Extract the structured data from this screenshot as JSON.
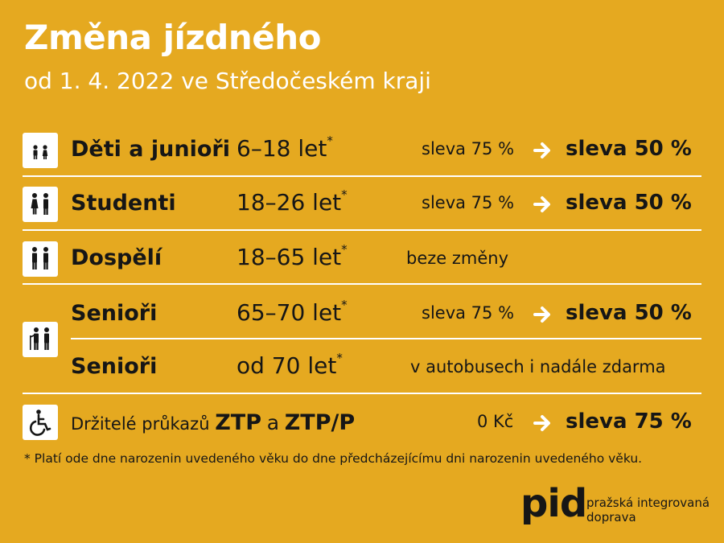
{
  "header": {
    "title": "Změna jízdného",
    "subtitle": "od 1. 4. 2022 ve Středočeském kraji"
  },
  "rows": [
    {
      "icon": "children-icon",
      "name": "Děti a junioři",
      "age": "6–18 let",
      "star": "*",
      "old": "sleva 75 %",
      "new": "sleva 50 %"
    },
    {
      "icon": "students-icon",
      "name": "Studenti",
      "age": "18–26 let",
      "star": "*",
      "old": "sleva 75 %",
      "new": "sleva 50 %"
    },
    {
      "icon": "adults-icon",
      "name": "Dospělí",
      "age": "18–65 let",
      "star": "*",
      "note": "beze změny"
    },
    {
      "icon": "seniors-icon",
      "name": "Senioři",
      "age": "65–70 let",
      "star": "*",
      "old": "sleva 75 %",
      "new": "sleva 50 %"
    },
    {
      "name": "Senioři",
      "age": "od 70 let",
      "star": "*",
      "note": "v autobusech i nadále zdarma"
    }
  ],
  "ztp": {
    "icon": "wheelchair-icon",
    "prefix": "Držitelé průkazů",
    "b1": "ZTP",
    "mid": "a",
    "b2": "ZTP/P",
    "old": "0 Kč",
    "new": "sleva 75 %"
  },
  "footnote": "*  Platí ode dne narozenin uvedeného věku do dne předcházejícímu dni narozenin uvedeného věku.",
  "logo": {
    "word": "pid",
    "line1": "pražská integrovaná",
    "line2": "doprava"
  },
  "colors": {
    "background": "#e5a920",
    "title": "#ffffff",
    "text": "#161616"
  }
}
